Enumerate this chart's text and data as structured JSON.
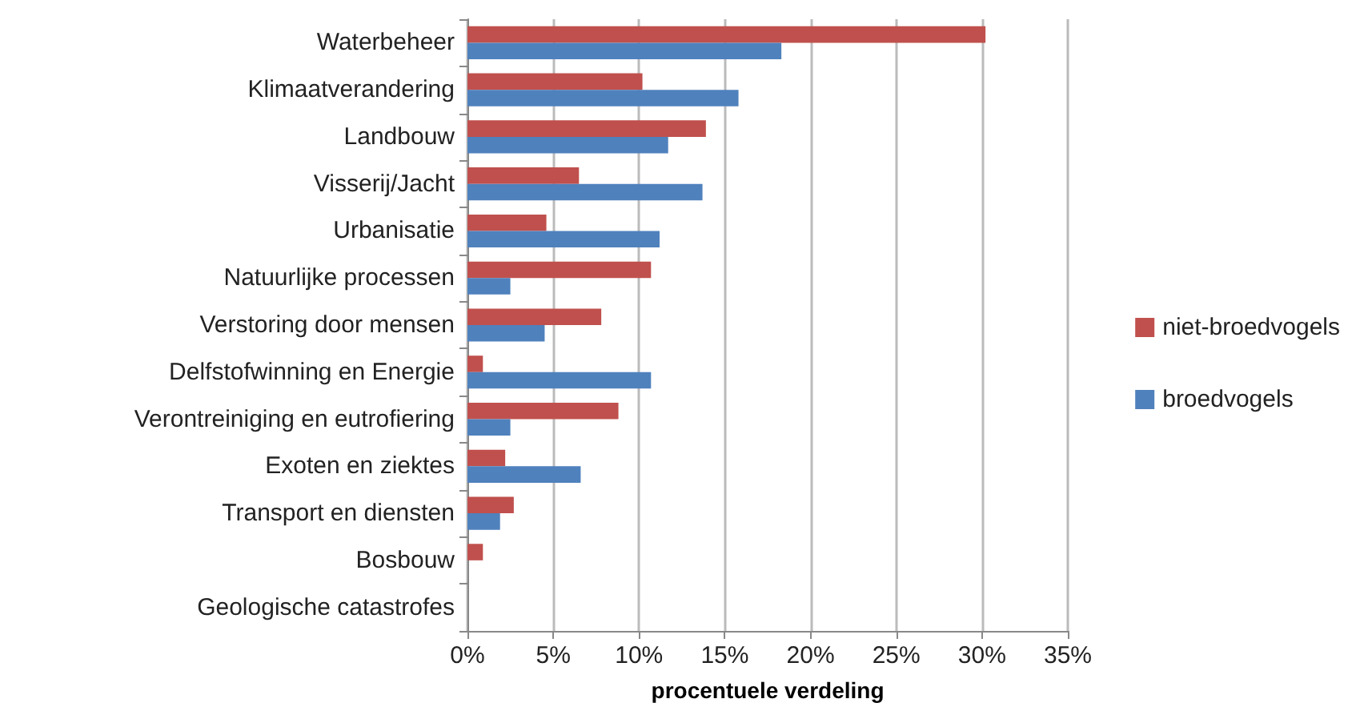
{
  "chart_data": {
    "type": "bar",
    "orientation": "horizontal",
    "xlabel": "procentuele verdeling",
    "categories": [
      "Waterbeheer",
      "Klimaatverandering",
      "Landbouw",
      "Visserij/Jacht",
      "Urbanisatie",
      "Natuurlijke processen",
      "Verstoring door mensen",
      "Delfstofwinning en Energie",
      "Verontreiniging en eutrofiering",
      "Exoten en ziektes",
      "Transport en diensten",
      "Bosbouw",
      "Geologische catastrofes"
    ],
    "series": [
      {
        "name": "niet-broedvogels",
        "color": "#c0504d",
        "values": [
          30.2,
          10.2,
          13.9,
          6.5,
          4.6,
          10.7,
          7.8,
          0.9,
          8.8,
          2.2,
          2.7,
          0.9,
          0
        ]
      },
      {
        "name": "broedvogels",
        "color": "#4f81bd",
        "values": [
          18.3,
          15.8,
          11.7,
          13.7,
          11.2,
          2.5,
          4.5,
          10.7,
          2.5,
          6.6,
          1.9,
          0,
          0
        ]
      }
    ],
    "xlim": [
      0,
      35
    ],
    "xticks": [
      {
        "value": 0,
        "label": "0%"
      },
      {
        "value": 5,
        "label": "5%"
      },
      {
        "value": 10,
        "label": "10%"
      },
      {
        "value": 15,
        "label": "15%"
      },
      {
        "value": 20,
        "label": "20%"
      },
      {
        "value": 25,
        "label": "25%"
      },
      {
        "value": 30,
        "label": "30%"
      },
      {
        "value": 35,
        "label": "35%"
      }
    ],
    "grid": "x",
    "legend": "right"
  }
}
